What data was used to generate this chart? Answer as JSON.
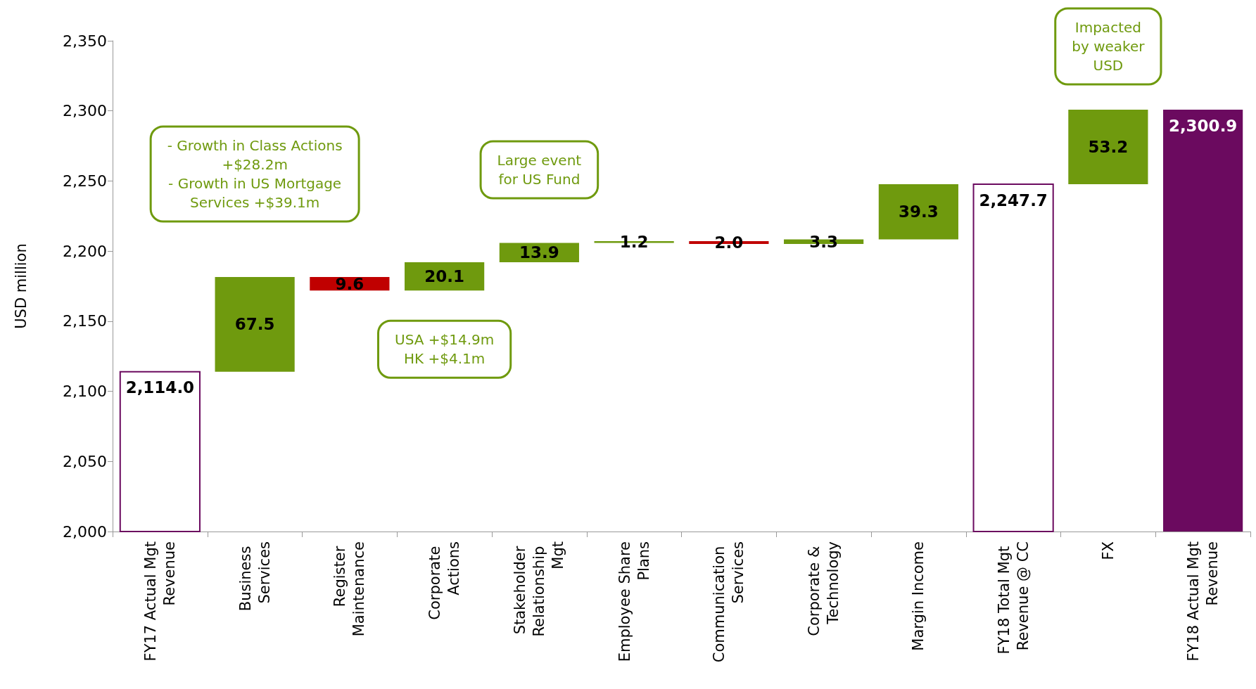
{
  "chart_data": {
    "type": "bar",
    "ylabel": "USD million",
    "categories": [
      "FY17 Actual Mgt Revenue",
      "Business Services",
      "Register Maintenance",
      "Corporate Actions",
      "Stakeholder Relationship Mgt",
      "Employee Share Plans",
      "Communication Services",
      "Corporate & Technology",
      "Margin Income",
      "FY18 Total Mgt Revenue @ CC",
      "FX",
      "FY18 Actual Mgt Revenue"
    ],
    "values": [
      2114.0,
      67.5,
      -9.6,
      20.1,
      13.9,
      1.2,
      -2.0,
      3.3,
      39.3,
      2247.7,
      53.2,
      2300.9
    ],
    "base": [
      0,
      2114.0,
      2181.5,
      2171.9,
      2192.0,
      2205.9,
      2207.1,
      2205.1,
      2208.4,
      0,
      2247.7,
      0
    ],
    "colors": [
      "#ffffff",
      "#6f9a0e",
      "#c00000",
      "#6f9a0e",
      "#6f9a0e",
      "#6f9a0e",
      "#c00000",
      "#6f9a0e",
      "#6f9a0e",
      "#ffffff",
      "#6f9a0e",
      "#6b0a5f"
    ],
    "value_labels": [
      "2,114.0",
      "67.5",
      "9.6",
      "20.1",
      "13.9",
      "1.2",
      "2.0",
      "3.3",
      "39.3",
      "2,247.7",
      "53.2",
      "2,300.9"
    ],
    "ylim": [
      2000,
      2350
    ],
    "yticks": [
      {
        "value": 2000,
        "label": "2,000"
      },
      {
        "value": 2050,
        "label": "2,050"
      },
      {
        "value": 2100,
        "label": "2,100"
      },
      {
        "value": 2150,
        "label": "2,150"
      },
      {
        "value": 2200,
        "label": "2,200"
      },
      {
        "value": 2250,
        "label": "2,250"
      },
      {
        "value": 2300,
        "label": "2,300"
      },
      {
        "value": 2350,
        "label": "2,350"
      }
    ],
    "grid": false,
    "annotations": [
      "- Growth in Class Actions\n+$28.2m\n- Growth in US Mortgage\nServices +$39.1m",
      "Large event\nfor US Fund",
      "USA +$14.9m\nHK +$4.1m",
      "Impacted\nby weaker\nUSD"
    ]
  }
}
